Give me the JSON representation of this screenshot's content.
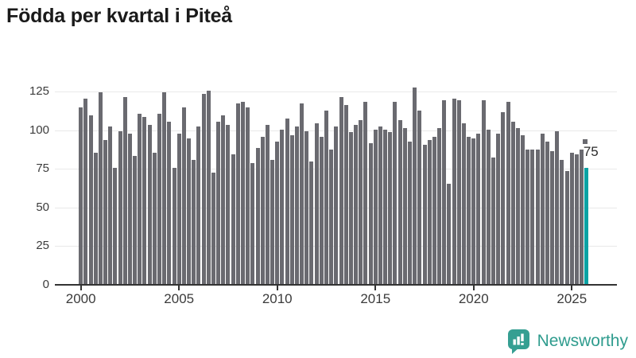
{
  "title": "Födda per kvartal i Piteå",
  "chart_data": {
    "type": "bar",
    "title": "Födda per kvartal i Piteå",
    "start": "2000-Q1",
    "end": "2025-Q4",
    "frequency": "quarterly",
    "values": [
      114,
      120,
      109,
      85,
      124,
      93,
      102,
      75,
      99,
      121,
      97,
      83,
      110,
      108,
      103,
      85,
      110,
      124,
      105,
      75,
      97,
      114,
      94,
      80,
      102,
      123,
      125,
      72,
      105,
      109,
      103,
      84,
      117,
      118,
      114,
      78,
      88,
      95,
      103,
      80,
      92,
      100,
      107,
      96,
      102,
      117,
      99,
      79,
      104,
      95,
      112,
      87,
      102,
      121,
      116,
      98,
      103,
      106,
      118,
      91,
      100,
      102,
      100,
      98,
      118,
      106,
      101,
      92,
      127,
      112,
      90,
      93,
      95,
      101,
      119,
      65,
      120,
      119,
      104,
      95,
      94,
      97,
      119,
      100,
      82,
      97,
      111,
      118,
      105,
      101,
      96,
      87,
      87,
      87,
      97,
      92,
      86,
      99,
      80,
      73,
      85,
      84,
      87,
      75
    ],
    "ylim": [
      0,
      125
    ],
    "yticks": [
      0,
      25,
      50,
      75,
      100,
      125
    ],
    "x_ticks": [
      {
        "label": "2000",
        "index": 0
      },
      {
        "label": "2005",
        "index": 20
      },
      {
        "label": "2010",
        "index": 40
      },
      {
        "label": "2015",
        "index": 60
      },
      {
        "label": "2020",
        "index": 80
      },
      {
        "label": "2025",
        "index": 100
      }
    ],
    "highlight_index": 103,
    "latest_value_label": "75",
    "bar_color": "#6a6a70",
    "highlight_color": "#0aa2a4",
    "gridline_color": "#e9e9e9",
    "axis_color": "#333333",
    "grid": true,
    "legend": "none"
  },
  "branding": {
    "name": "Newsworthy",
    "color": "#2f9c8e",
    "icon": "newsworthy-chart-bubble-icon"
  }
}
